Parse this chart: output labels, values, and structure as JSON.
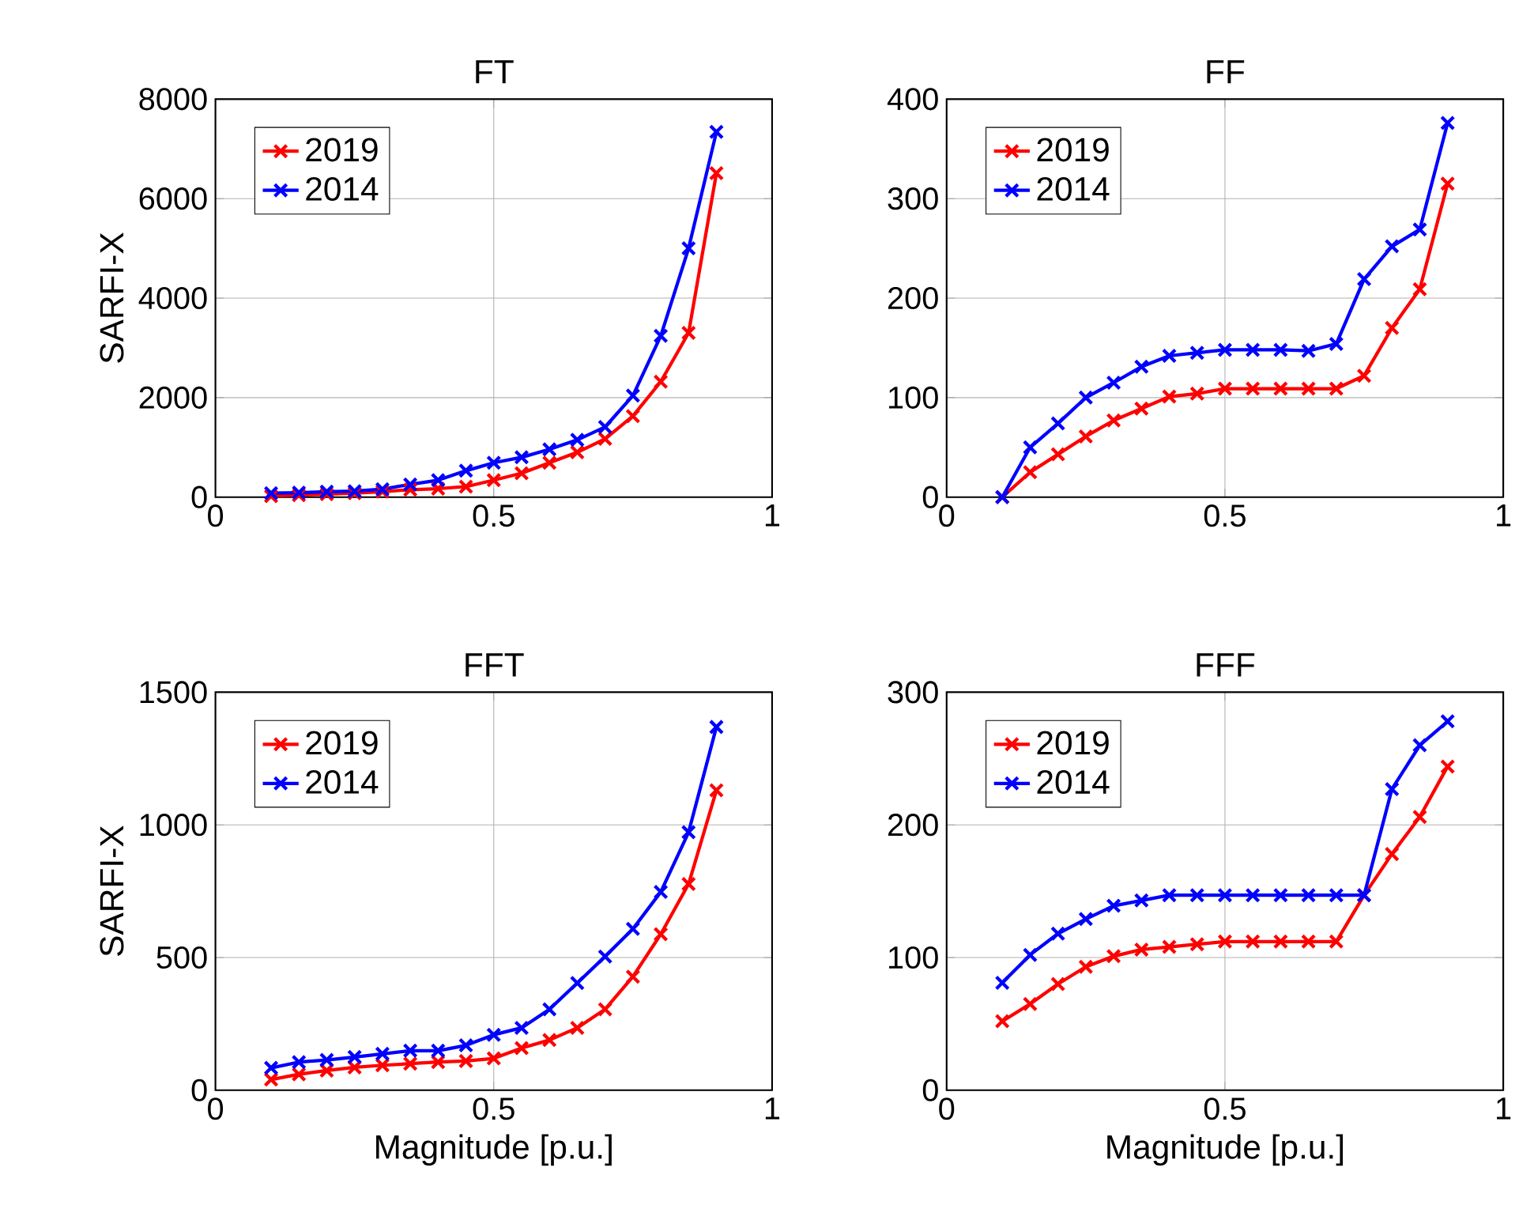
{
  "chart_data": [
    {
      "type": "line",
      "title": "FT",
      "ylabel": "SARFI-X",
      "x": [
        0.1,
        0.15,
        0.2,
        0.25,
        0.3,
        0.35,
        0.4,
        0.45,
        0.5,
        0.55,
        0.6,
        0.65,
        0.7,
        0.75,
        0.8,
        0.85,
        0.9
      ],
      "xlim": [
        0,
        1
      ],
      "xticks": [
        0,
        0.5,
        1
      ],
      "ylim": [
        0,
        8000
      ],
      "yticks": [
        0,
        2000,
        4000,
        6000,
        8000
      ],
      "grid": true,
      "legend": "top left",
      "marker": "cross",
      "line_style": "solid",
      "series": [
        {
          "name": "2019",
          "color": "#ff0000",
          "values": [
            20,
            40,
            60,
            80,
            110,
            150,
            170,
            210,
            340,
            480,
            690,
            900,
            1170,
            1630,
            2320,
            3300,
            6510
          ]
        },
        {
          "name": "2014",
          "color": "#0000ff",
          "values": [
            80,
            90,
            110,
            120,
            160,
            255,
            340,
            530,
            690,
            800,
            960,
            1150,
            1410,
            2040,
            3240,
            5000,
            7340
          ]
        }
      ]
    },
    {
      "type": "line",
      "title": "FF",
      "x": [
        0.1,
        0.15,
        0.2,
        0.25,
        0.3,
        0.35,
        0.4,
        0.45,
        0.5,
        0.55,
        0.6,
        0.65,
        0.7,
        0.75,
        0.8,
        0.85,
        0.9
      ],
      "xlim": [
        0,
        1
      ],
      "xticks": [
        0,
        0.5,
        1
      ],
      "ylim": [
        0,
        400
      ],
      "yticks": [
        0,
        100,
        200,
        300,
        400
      ],
      "grid": true,
      "legend": "top left",
      "marker": "cross",
      "line_style": "solid",
      "series": [
        {
          "name": "2019",
          "color": "#ff0000",
          "values": [
            0,
            25,
            43,
            61,
            77,
            89,
            101,
            104,
            109,
            109,
            109,
            109,
            109,
            122,
            170,
            209,
            315
          ]
        },
        {
          "name": "2014",
          "color": "#0000ff",
          "values": [
            0,
            50,
            74,
            100,
            115,
            131,
            142,
            145,
            148,
            148,
            148,
            147,
            154,
            219,
            252,
            269,
            376
          ]
        }
      ]
    },
    {
      "type": "line",
      "title": "FFT",
      "ylabel": "SARFI-X",
      "xlabel": "Magnitude [p.u.]",
      "x": [
        0.1,
        0.15,
        0.2,
        0.25,
        0.3,
        0.35,
        0.4,
        0.45,
        0.5,
        0.55,
        0.6,
        0.65,
        0.7,
        0.75,
        0.8,
        0.85,
        0.9
      ],
      "xlim": [
        0,
        1
      ],
      "xticks": [
        0,
        0.5,
        1
      ],
      "ylim": [
        0,
        1500
      ],
      "yticks": [
        0,
        500,
        1000,
        1500
      ],
      "grid": true,
      "legend": "top left",
      "marker": "cross",
      "line_style": "solid",
      "series": [
        {
          "name": "2019",
          "color": "#ff0000",
          "values": [
            40,
            60,
            74,
            86,
            94,
            100,
            106,
            110,
            120,
            159,
            189,
            235,
            305,
            428,
            588,
            777,
            1130
          ]
        },
        {
          "name": "2014",
          "color": "#0000ff",
          "values": [
            84,
            106,
            114,
            125,
            137,
            149,
            149,
            169,
            209,
            235,
            305,
            404,
            504,
            608,
            747,
            972,
            1369
          ]
        }
      ]
    },
    {
      "type": "line",
      "title": "FFF",
      "xlabel": "Magnitude [p.u.]",
      "x": [
        0.1,
        0.15,
        0.2,
        0.25,
        0.3,
        0.35,
        0.4,
        0.45,
        0.5,
        0.55,
        0.6,
        0.65,
        0.7,
        0.75,
        0.8,
        0.85,
        0.9
      ],
      "xlim": [
        0,
        1
      ],
      "xticks": [
        0,
        0.5,
        1
      ],
      "ylim": [
        0,
        300
      ],
      "yticks": [
        0,
        100,
        200,
        300
      ],
      "grid": true,
      "legend": "top left",
      "marker": "cross",
      "line_style": "solid",
      "series": [
        {
          "name": "2019",
          "color": "#ff0000",
          "values": [
            52,
            65,
            80,
            93,
            101,
            106,
            108,
            110,
            112,
            112,
            112,
            112,
            112,
            147,
            178,
            206,
            244
          ]
        },
        {
          "name": "2014",
          "color": "#0000ff",
          "values": [
            81,
            102,
            118,
            129,
            139,
            143,
            147,
            147,
            147,
            147,
            147,
            147,
            147,
            147,
            227,
            260,
            278
          ]
        }
      ]
    }
  ]
}
